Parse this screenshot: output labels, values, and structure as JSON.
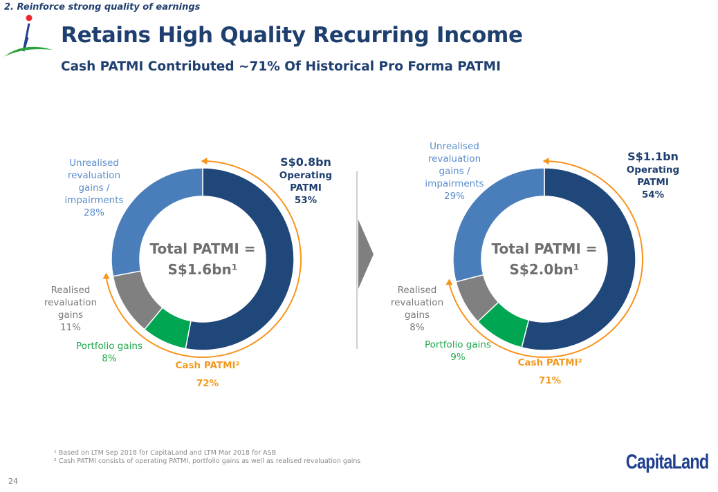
{
  "header": {
    "section": "2. Reinforce strong quality of earnings",
    "title": "Retains High Quality Recurring Income",
    "subtitle": "Cash PATMI Contributed ~71% Of Historical Pro Forma PATMI"
  },
  "colors": {
    "operating": "#1f477a",
    "portfolio": "#00a651",
    "realised": "#808080",
    "unrealised": "#4a7ebb",
    "cash_arc": "#f7941d"
  },
  "chart_data": [
    {
      "type": "pie",
      "title": "Total PATMI = S$1.6bn¹",
      "center_line1": "Total PATMI =",
      "center_line2": "S$1.6bn¹",
      "slices": [
        {
          "name": "Operating PATMI",
          "value": 53,
          "label_amount": "S$0.8bn",
          "label_line1": "Operating",
          "label_line2": "PATMI",
          "pct": "53%"
        },
        {
          "name": "Portfolio gains",
          "value": 8,
          "label": "Portfolio gains",
          "pct": "8%"
        },
        {
          "name": "Realised revaluation gains",
          "value": 11,
          "label_lines": [
            "Realised",
            "revaluation",
            "gains"
          ],
          "pct": "11%"
        },
        {
          "name": "Unrealised revaluation gains / impairments",
          "value": 28,
          "label_lines": [
            "Unrealised",
            "revaluation",
            "gains /",
            "impairments"
          ],
          "pct": "28%"
        }
      ],
      "cash": {
        "label": "Cash PATMI²",
        "value": 72,
        "pct": "72%"
      }
    },
    {
      "type": "pie",
      "title": "Total PATMI = S$2.0bn¹",
      "center_line1": "Total PATMI =",
      "center_line2": "S$2.0bn¹",
      "slices": [
        {
          "name": "Operating PATMI",
          "value": 54,
          "label_amount": "S$1.1bn",
          "label_line1": "Operating",
          "label_line2": "PATMI",
          "pct": "54%"
        },
        {
          "name": "Portfolio gains",
          "value": 9,
          "label": "Portfolio gains",
          "pct": "9%"
        },
        {
          "name": "Realised revaluation gains",
          "value": 8,
          "label_lines": [
            "Realised",
            "revaluation",
            "gains"
          ],
          "pct": "8%"
        },
        {
          "name": "Unrealised revaluation gains / impairments",
          "value": 29,
          "label_lines": [
            "Unrealised",
            "revaluation",
            "gains /",
            "impairments"
          ],
          "pct": "29%"
        }
      ],
      "cash": {
        "label": "Cash PATMI²",
        "value": 71,
        "pct": "71%"
      }
    }
  ],
  "footnotes": [
    "¹ Based on LTM Sep 2018 for CapitaLand and LTM Mar 2018 for ASB",
    "² Cash PATMI consists of operating PATMI, portfolio gains as well as realised revaluation gains"
  ],
  "page_number": "24",
  "logo_text": "CapitaLand"
}
